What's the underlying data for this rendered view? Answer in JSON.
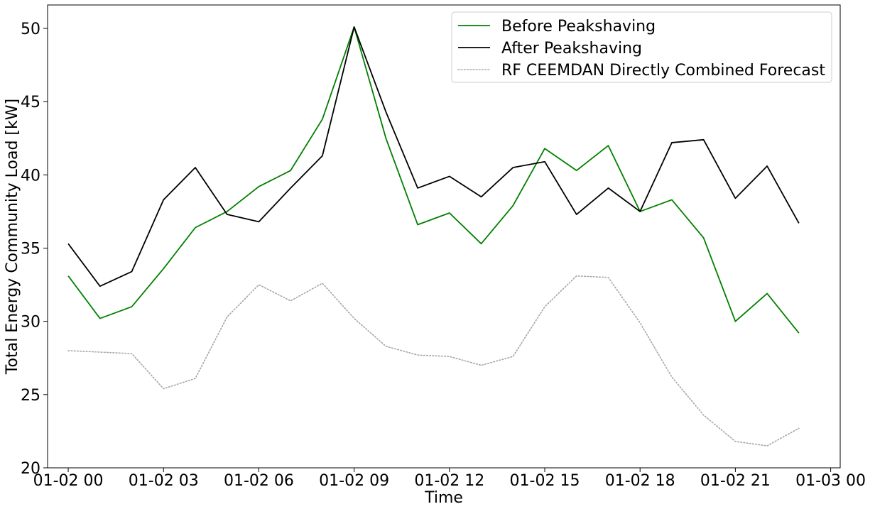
{
  "chart_data": {
    "type": "line",
    "title": "",
    "xlabel": "Time",
    "ylabel": "Total Energy Community Load [kW]",
    "x_ticks": [
      "01-02 00",
      "01-02 03",
      "01-02 06",
      "01-02 09",
      "01-02 12",
      "01-02 15",
      "01-02 18",
      "01-02 21",
      "01-03 00"
    ],
    "y_ticks": [
      "20",
      "25",
      "30",
      "35",
      "40",
      "45",
      "50"
    ],
    "xlim": [
      "01-01 23:21",
      "01-03 00:18"
    ],
    "ylim": [
      20,
      51.6
    ],
    "grid": false,
    "legend_position": "top-right",
    "x": [
      "01-02 00:00",
      "01-02 01:00",
      "01-02 02:00",
      "01-02 03:00",
      "01-02 04:00",
      "01-02 05:00",
      "01-02 06:00",
      "01-02 07:00",
      "01-02 08:00",
      "01-02 09:00",
      "01-02 10:00",
      "01-02 11:00",
      "01-02 12:00",
      "01-02 13:00",
      "01-02 14:00",
      "01-02 15:00",
      "01-02 16:00",
      "01-02 17:00",
      "01-02 18:00",
      "01-02 19:00",
      "01-02 20:00",
      "01-02 21:00",
      "01-02 22:00",
      "01-02 23:00"
    ],
    "series": [
      {
        "name": "Before Peakshaving",
        "color": "#008000",
        "style": "solid",
        "values": [
          33.1,
          30.2,
          31.0,
          33.6,
          36.4,
          37.5,
          39.2,
          40.3,
          43.8,
          50.1,
          42.5,
          36.6,
          37.4,
          35.3,
          37.9,
          41.8,
          40.3,
          42.0,
          37.5,
          38.3,
          35.7,
          30.0,
          31.9,
          29.2
        ]
      },
      {
        "name": "After Peakshaving",
        "color": "#000000",
        "style": "solid",
        "values": [
          35.3,
          32.4,
          33.4,
          38.3,
          40.5,
          37.3,
          36.8,
          39.1,
          41.3,
          50.1,
          44.3,
          39.1,
          39.9,
          38.5,
          40.5,
          40.9,
          37.3,
          39.1,
          37.5,
          42.2,
          42.4,
          38.4,
          40.6,
          36.7
        ]
      },
      {
        "name": "RF CEEMDAN Directly Combined Forecast",
        "color": "#a6a6a6",
        "style": "dotted",
        "values": [
          28.0,
          27.9,
          27.8,
          25.4,
          26.1,
          30.3,
          32.5,
          31.4,
          32.6,
          30.2,
          28.3,
          27.7,
          27.6,
          27.0,
          27.6,
          31.0,
          33.1,
          33.0,
          29.9,
          26.2,
          23.6,
          21.8,
          21.5,
          22.7
        ]
      }
    ]
  }
}
